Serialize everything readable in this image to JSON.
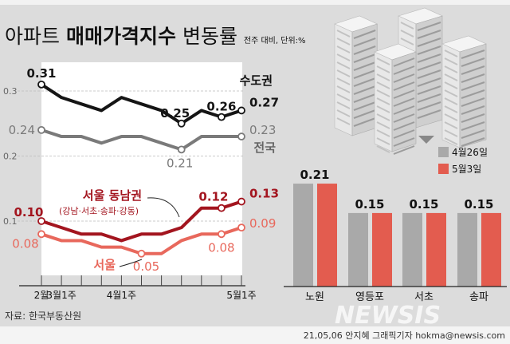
{
  "title": {
    "main_light": "아파트",
    "main_bold": "매매가격지수",
    "main_tail": "변동률",
    "note": "전주 대비, 단위:%"
  },
  "source": "자료: 한국부동산원",
  "credit": "21,05,06 안지혜 그래픽기자 hokma@newsis.com",
  "watermark": "NEWSIS",
  "colors": {
    "capital": "#151515",
    "national": "#7a7a7a",
    "seoul_se": "#a3151f",
    "seoul": "#e8685c",
    "bar_prev": "#a9a9a9",
    "bar_curr": "#e35c4f",
    "background": "#dcdcdc"
  },
  "chart_data": [
    {
      "type": "line",
      "x_ticks": [
        "2월",
        "3월1주",
        "4월1주",
        "5월1주"
      ],
      "x_tick_index": [
        0,
        1,
        4,
        10
      ],
      "y_ticks": [
        "0.3",
        "0.2",
        "0.1"
      ],
      "y_tick_values": [
        0.3,
        0.2,
        0.1
      ],
      "grid": "horizontal dashed at ticks",
      "series": [
        {
          "name": "수도권",
          "color": "#151515",
          "values": [
            0.31,
            0.29,
            0.28,
            0.27,
            0.29,
            0.28,
            0.27,
            0.25,
            0.27,
            0.26,
            0.27
          ],
          "labels": [
            {
              "i": 0,
              "text": "0.31"
            },
            {
              "i": 7,
              "text": "0.25"
            },
            {
              "i": 9,
              "text": "0.26"
            },
            {
              "i": 10,
              "text": "0.27"
            }
          ]
        },
        {
          "name": "전국",
          "color": "#7a7a7a",
          "values": [
            0.24,
            0.23,
            0.23,
            0.22,
            0.23,
            0.23,
            0.22,
            0.21,
            0.23,
            0.23,
            0.23
          ],
          "labels": [
            {
              "i": 0,
              "text": "0.24"
            },
            {
              "i": 7,
              "text": "0.21"
            },
            {
              "i": 10,
              "text": "0.23"
            }
          ]
        },
        {
          "name": "서울 동남권",
          "subtitle": "(강남·서초·송파·강동)",
          "color": "#a3151f",
          "values": [
            0.1,
            0.09,
            0.08,
            0.08,
            0.07,
            0.08,
            0.08,
            0.09,
            0.12,
            0.12,
            0.13
          ],
          "labels": [
            {
              "i": 0,
              "text": "0.10"
            },
            {
              "i": 9,
              "text": "0.12"
            },
            {
              "i": 10,
              "text": "0.13"
            }
          ]
        },
        {
          "name": "서울",
          "color": "#e8685c",
          "values": [
            0.08,
            0.07,
            0.07,
            0.06,
            0.06,
            0.05,
            0.05,
            0.07,
            0.08,
            0.08,
            0.09
          ],
          "labels": [
            {
              "i": 0,
              "text": "0.08"
            },
            {
              "i": 5,
              "text": "0.05"
            },
            {
              "i": 9,
              "text": "0.08"
            },
            {
              "i": 10,
              "text": "0.09"
            }
          ]
        }
      ]
    },
    {
      "type": "bar",
      "categories": [
        "노원",
        "영등포",
        "서초",
        "송파"
      ],
      "series": [
        {
          "name": "4월26일",
          "color": "#a9a9a9",
          "values": [
            0.21,
            0.15,
            0.15,
            0.15
          ]
        },
        {
          "name": "5월3일",
          "color": "#e35c4f",
          "values": [
            0.21,
            0.15,
            0.15,
            0.15
          ]
        }
      ],
      "data_labels": [
        "0.21",
        "0.15",
        "0.15",
        "0.15"
      ],
      "legend": "top-right"
    }
  ]
}
